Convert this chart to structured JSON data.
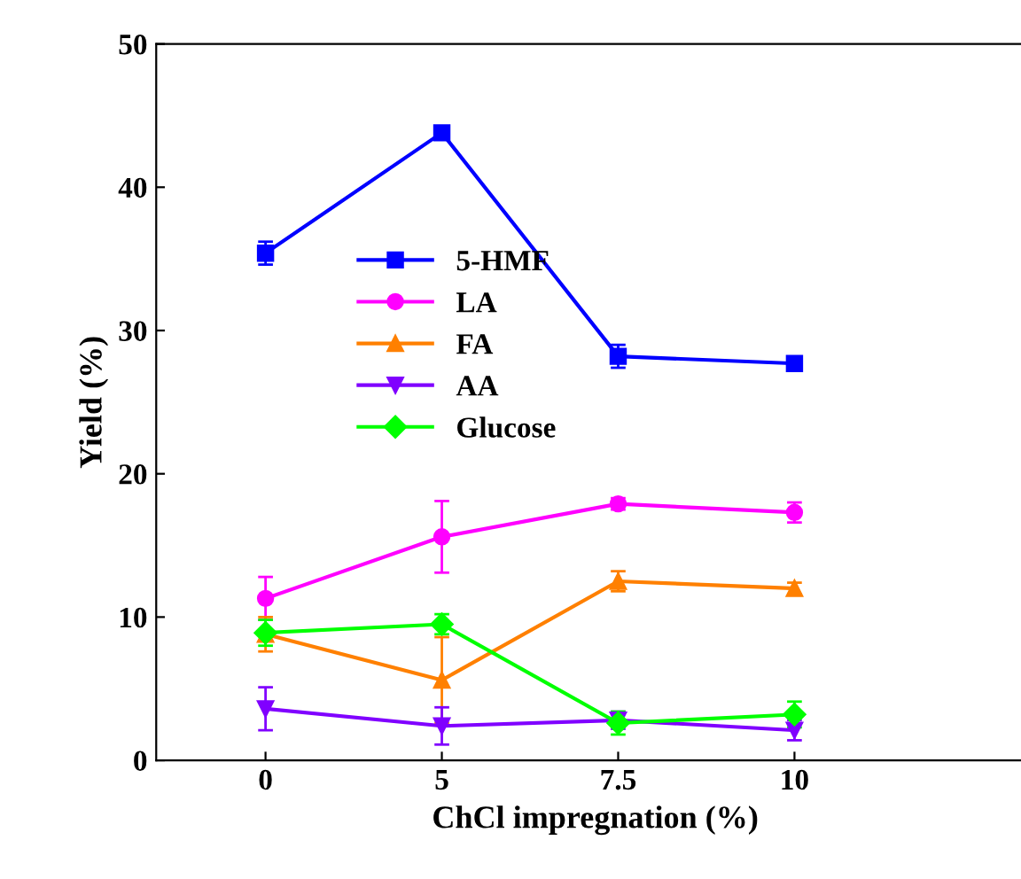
{
  "chart_data": {
    "type": "line",
    "xlabel": "ChCl impregnation (%)",
    "ylabel": "Yield (%)",
    "categories": [
      "0",
      "5",
      "7.5",
      "10"
    ],
    "ylim": [
      0,
      50
    ],
    "yticks": [
      0,
      10,
      20,
      30,
      40,
      50
    ],
    "grid": false,
    "legend": "top left",
    "line_style": "solid",
    "series": [
      {
        "name": "5-HMF",
        "color": "#0000ff",
        "marker": "square",
        "values": [
          35.4,
          43.8,
          28.2,
          27.7
        ],
        "errors": [
          0.8,
          0.3,
          0.8,
          0.3
        ]
      },
      {
        "name": "LA",
        "color": "#ff00ff",
        "marker": "circle",
        "values": [
          11.3,
          15.6,
          17.9,
          17.3
        ],
        "errors": [
          1.5,
          2.5,
          0.4,
          0.7
        ]
      },
      {
        "name": "FA",
        "color": "#ff8000",
        "marker": "triangle",
        "values": [
          8.8,
          5.6,
          12.5,
          12.0
        ],
        "errors": [
          1.2,
          3.0,
          0.7,
          0.4
        ]
      },
      {
        "name": "AA",
        "color": "#8000ff",
        "marker": "triangle_down",
        "values": [
          3.6,
          2.4,
          2.8,
          2.1
        ],
        "errors": [
          1.5,
          1.3,
          0.6,
          0.7
        ]
      },
      {
        "name": "Glucose",
        "color": "#00ff00",
        "marker": "diamond",
        "values": [
          8.9,
          9.5,
          2.6,
          3.2
        ],
        "errors": [
          0.9,
          0.7,
          0.8,
          0.9
        ]
      }
    ]
  }
}
